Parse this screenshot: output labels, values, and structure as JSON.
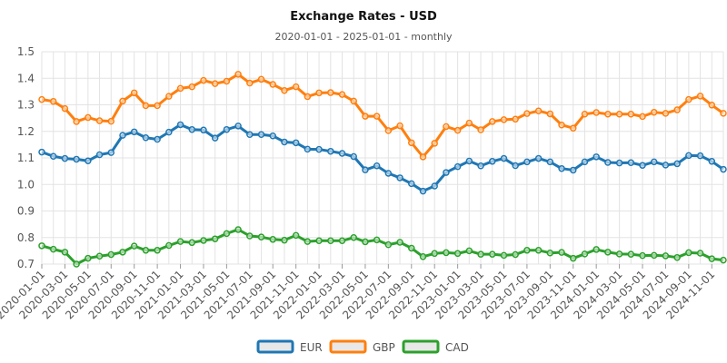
{
  "chart_data": {
    "type": "line",
    "title": "Exchange Rates - USD",
    "subtitle": "2020-01-01 - 2025-01-01 - monthly",
    "xlabel": "",
    "ylabel": "",
    "ylim": [
      0.7,
      1.5
    ],
    "yticks": [
      "0.7",
      "0.8",
      "0.9",
      "1.0",
      "1.1",
      "1.2",
      "1.3",
      "1.4",
      "1.5"
    ],
    "x_tick_labels": [
      "2020-01-01",
      "2020-03-01",
      "2020-05-01",
      "2020-07-01",
      "2020-09-01",
      "2020-11-01",
      "2021-01-01",
      "2021-03-01",
      "2021-05-01",
      "2021-07-01",
      "2021-09-01",
      "2021-11-01",
      "2022-01-01",
      "2022-03-01",
      "2022-05-01",
      "2022-07-01",
      "2022-09-01",
      "2022-11-01",
      "2023-01-01",
      "2023-03-01",
      "2023-05-01",
      "2023-07-01",
      "2023-09-01",
      "2023-11-01",
      "2024-01-01",
      "2024-03-01",
      "2024-05-01",
      "2024-07-01",
      "2024-09-01",
      "2024-11-01"
    ],
    "grid": true,
    "legend_position": "bottom",
    "series": [
      {
        "name": "EUR",
        "color": "#1f77b4",
        "values": [
          1.122,
          1.106,
          1.098,
          1.095,
          1.089,
          1.112,
          1.12,
          1.185,
          1.198,
          1.176,
          1.17,
          1.197,
          1.225,
          1.207,
          1.205,
          1.175,
          1.207,
          1.22,
          1.188,
          1.188,
          1.183,
          1.16,
          1.157,
          1.133,
          1.132,
          1.125,
          1.117,
          1.105,
          1.055,
          1.07,
          1.042,
          1.025,
          1.003,
          0.975,
          0.994,
          1.045,
          1.067,
          1.088,
          1.07,
          1.087,
          1.098,
          1.071,
          1.085,
          1.098,
          1.085,
          1.06,
          1.054,
          1.085,
          1.104,
          1.083,
          1.081,
          1.082,
          1.072,
          1.085,
          1.073,
          1.078,
          1.109,
          1.108,
          1.087,
          1.057
        ]
      },
      {
        "name": "GBP",
        "color": "#ff7f0e",
        "values": [
          1.32,
          1.313,
          1.286,
          1.237,
          1.252,
          1.24,
          1.238,
          1.314,
          1.345,
          1.297,
          1.297,
          1.332,
          1.362,
          1.368,
          1.392,
          1.38,
          1.389,
          1.415,
          1.382,
          1.396,
          1.377,
          1.354,
          1.368,
          1.331,
          1.345,
          1.346,
          1.339,
          1.314,
          1.257,
          1.257,
          1.203,
          1.221,
          1.157,
          1.104,
          1.155,
          1.218,
          1.204,
          1.231,
          1.206,
          1.237,
          1.244,
          1.246,
          1.267,
          1.277,
          1.266,
          1.224,
          1.212,
          1.265,
          1.271,
          1.265,
          1.265,
          1.265,
          1.256,
          1.272,
          1.268,
          1.281,
          1.32,
          1.333,
          1.299,
          1.268
        ]
      },
      {
        "name": "CAD",
        "color": "#2ca02c",
        "values": [
          0.769,
          0.756,
          0.745,
          0.7,
          0.722,
          0.73,
          0.736,
          0.745,
          0.768,
          0.752,
          0.752,
          0.77,
          0.785,
          0.781,
          0.789,
          0.795,
          0.815,
          0.83,
          0.806,
          0.802,
          0.793,
          0.79,
          0.808,
          0.785,
          0.788,
          0.788,
          0.788,
          0.8,
          0.784,
          0.791,
          0.773,
          0.782,
          0.76,
          0.728,
          0.74,
          0.743,
          0.74,
          0.75,
          0.737,
          0.737,
          0.733,
          0.736,
          0.752,
          0.752,
          0.742,
          0.744,
          0.722,
          0.738,
          0.755,
          0.745,
          0.738,
          0.737,
          0.732,
          0.733,
          0.731,
          0.725,
          0.743,
          0.741,
          0.72,
          0.715
        ]
      }
    ]
  }
}
